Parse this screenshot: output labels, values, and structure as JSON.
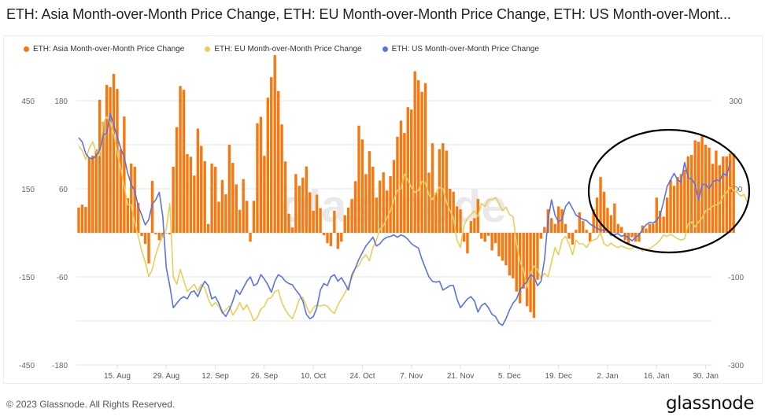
{
  "title": "ETH: Asia Month-over-Month Price Change, ETH: EU Month-over-Month Price Change, ETH: US Month-over-Mont...",
  "footer": {
    "copyright": "© 2023 Glassnode. All Rights Reserved.",
    "brand": "glassnode"
  },
  "watermark": "glassnode",
  "colors": {
    "asia": "#f7780f",
    "eu": "#e8cf5a",
    "us": "#5a73e0",
    "grid": "#e6e6e6",
    "annotation": "#000000"
  },
  "chart_data": {
    "type": "bar+line",
    "title": "ETH: Asia Month-over-Month Price Change, ETH: EU Month-over-Month Price Change, ETH: US Month-over-Month Price Change",
    "legend_position": "top-left",
    "grid": true,
    "x_start": "2022-08-04",
    "x_end": "2023-01-31",
    "x_ticks": [
      "15. Aug",
      "29. Aug",
      "12. Sep",
      "26. Sep",
      "10. Oct",
      "24. Oct",
      "7. Nov",
      "21. Nov",
      "5. Dec",
      "19. Dec",
      "2. Jan",
      "16. Jan",
      "30. Jan"
    ],
    "axes": [
      {
        "id": "left_outer",
        "side": "left",
        "ticks": [
          450,
          150,
          -150,
          -450
        ],
        "ylim": [
          -450,
          450
        ]
      },
      {
        "id": "left_inner",
        "side": "left",
        "ticks": [
          180,
          60,
          -60,
          -180
        ],
        "ylim": [
          -180,
          180
        ]
      },
      {
        "id": "right",
        "side": "right",
        "ticks": [
          300,
          100,
          -100,
          -300
        ],
        "ylim": [
          -300,
          300
        ]
      }
    ],
    "annotation": "black ellipse highlighting mid-to-late January 2023",
    "series": [
      {
        "name": "ETH: Asia Month-over-Month Price Change",
        "type": "bar",
        "axis": "left_outer",
        "color": "#f7780f",
        "values": [
          86,
          96,
          88,
          257,
          263,
          284,
          453,
          378,
          504,
          496,
          541,
          490,
          284,
          396,
          118,
          236,
          225,
          102,
          -11,
          -38,
          -104,
          177,
          -5,
          -25,
          -15,
          0,
          -5,
          225,
          360,
          500,
          487,
          268,
          259,
          195,
          355,
          296,
          244,
          30,
          236,
          225,
          106,
          180,
          131,
          300,
          238,
          165,
          78,
          183,
          109,
          -30,
          109,
          373,
          395,
          262,
          460,
          530,
          605,
          483,
          369,
          243,
          65,
          18,
          200,
          160,
          188,
          226,
          138,
          75,
          130,
          84,
          -8,
          -35,
          -45,
          75,
          -55,
          -30,
          60,
          86,
          115,
          176,
          365,
          318,
          200,
          278,
          225,
          120,
          178,
          206,
          144,
          193,
          248,
          327,
          382,
          340,
          428,
          420,
          550,
          520,
          480,
          510,
          205,
          305,
          137,
          285,
          305,
          280,
          150,
          140,
          90,
          80,
          -30,
          -70,
          40,
          50,
          115,
          -20,
          -30,
          -10,
          -60,
          -35,
          -80,
          -95,
          -110,
          -145,
          -155,
          -200,
          -240,
          -190,
          -250,
          -270,
          -290,
          -160,
          -20,
          20,
          80,
          50,
          30,
          90,
          80,
          30,
          -20,
          -40,
          10,
          70,
          40,
          10,
          -30,
          80,
          120,
          190,
          140,
          85,
          60,
          100,
          30,
          20,
          -25,
          -35,
          -15,
          -30,
          -30,
          25,
          15,
          30,
          30,
          120,
          75,
          55,
          120,
          180,
          160,
          190,
          200,
          215,
          260,
          265,
          315,
          310,
          330,
          300,
          290,
          235,
          280,
          230,
          260,
          260,
          270,
          270
        ]
      },
      {
        "name": "ETH: EU Month-over-Month Price Change",
        "type": "line",
        "axis": "left_inner",
        "color": "#e8cf5a",
        "values": [
          118,
          112,
          100,
          115,
          124,
          110,
          105,
          150,
          158,
          150,
          135,
          110,
          88,
          63,
          38,
          38,
          14,
          -5,
          -25,
          -40,
          -60,
          -50,
          -30,
          -15,
          -5,
          5,
          40,
          -60,
          -70,
          -50,
          -65,
          -80,
          -75,
          -70,
          -80,
          -70,
          -75,
          -90,
          -100,
          -95,
          -100,
          -110,
          -105,
          -100,
          -112,
          -105,
          -95,
          -105,
          -98,
          -108,
          -120,
          -115,
          -104,
          -100,
          -90,
          -88,
          -80,
          -78,
          -95,
          -105,
          -112,
          -117,
          -105,
          -90,
          -88,
          -100,
          -110,
          -102,
          -98,
          -100,
          -98,
          -100,
          -106,
          -110,
          -98,
          -90,
          -82,
          -72,
          -62,
          -48,
          -44,
          -35,
          -30,
          -38,
          -20,
          -10,
          5,
          10,
          20,
          30,
          45,
          58,
          60,
          80,
          72,
          62,
          55,
          58,
          70,
          68,
          52,
          45,
          55,
          62,
          60,
          42,
          30,
          20,
          -10,
          -20,
          10,
          20,
          25,
          30,
          22,
          40,
          36,
          45,
          45,
          48,
          40,
          30,
          35,
          25,
          22,
          -15,
          -40,
          -50,
          -75,
          -55,
          -45,
          -50,
          -62,
          -55,
          -60,
          -40,
          -20,
          -30,
          -10,
          -5,
          -15,
          -30,
          -10,
          -15,
          -15,
          -20,
          -12,
          -10,
          -8,
          0,
          -15,
          -18,
          -14,
          -18,
          -20,
          -18,
          -20,
          -22,
          -21,
          -18,
          -20,
          -25,
          -22,
          -22,
          -18,
          -15,
          -10,
          -3,
          -5,
          -2,
          -5,
          -8,
          -10,
          -8,
          12,
          15,
          8,
          15,
          20,
          30,
          32,
          36,
          38,
          40,
          50,
          55,
          62,
          58,
          55,
          50,
          52,
          40
        ]
      },
      {
        "name": "ETH: US Month-over-Month Price Change",
        "type": "line",
        "axis": "right",
        "color": "#5a73e0",
        "values": [
          216,
          206,
          180,
          170,
          168,
          175,
          188,
          222,
          226,
          270,
          245,
          218,
          192,
          172,
          135,
          110,
          95,
          60,
          40,
          18,
          30,
          65,
          75,
          92,
          38,
          -80,
          -120,
          -170,
          -160,
          -150,
          -145,
          -150,
          -135,
          -132,
          -145,
          -125,
          -110,
          -120,
          -150,
          -145,
          -160,
          -180,
          -190,
          -175,
          -155,
          -130,
          -140,
          -125,
          -110,
          -100,
          -120,
          -115,
          -95,
          -105,
          -118,
          -135,
          -110,
          -95,
          -100,
          -110,
          -115,
          -118,
          -130,
          -140,
          -155,
          -185,
          -195,
          -190,
          -170,
          -130,
          -115,
          -120,
          -100,
          -95,
          -110,
          -102,
          -115,
          -130,
          -95,
          -80,
          -60,
          -45,
          -30,
          -20,
          -10,
          -30,
          -25,
          -15,
          -10,
          -8,
          -5,
          -10,
          -5,
          -8,
          -15,
          -25,
          -30,
          -35,
          -60,
          -80,
          -100,
          -110,
          -112,
          -110,
          -130,
          -125,
          -120,
          -120,
          -150,
          -170,
          -160,
          -150,
          -145,
          -155,
          -180,
          -165,
          -160,
          -170,
          -185,
          -190,
          -205,
          -210,
          -195,
          -175,
          -160,
          -150,
          -130,
          -120,
          -110,
          -95,
          -100,
          -120,
          -110,
          -60,
          30,
          75,
          40,
          25,
          30,
          60,
          70,
          55,
          40,
          35,
          30,
          28,
          20,
          15,
          10,
          6,
          6,
          5,
          -6,
          -4,
          -2,
          -8,
          -5,
          -12,
          -18,
          -10,
          -5,
          8,
          18,
          24,
          22,
          28,
          40,
          70,
          105,
          120,
          135,
          120,
          115,
          160,
          125,
          122,
          110,
          75,
          110,
          110,
          100,
          115,
          120,
          118,
          135,
          130,
          160
        ]
      }
    ]
  }
}
